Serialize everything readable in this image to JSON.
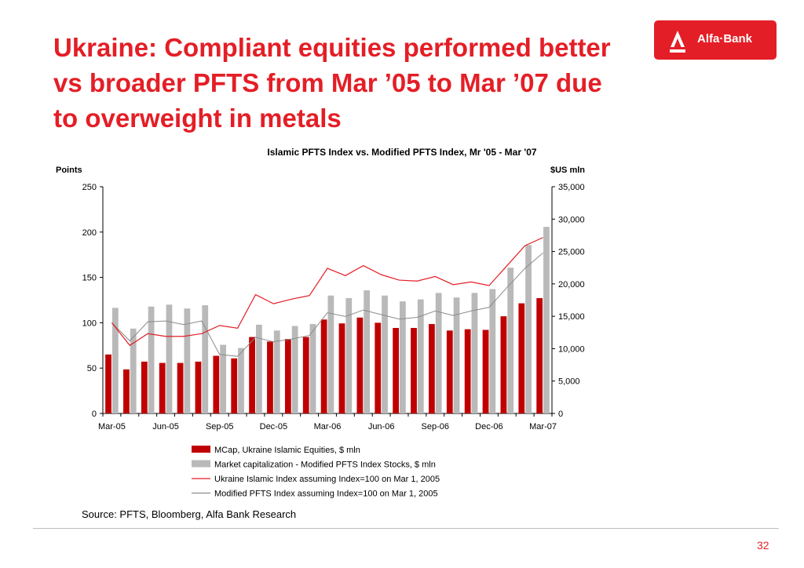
{
  "slide": {
    "title": "Ukraine: Compliant equities performed better vs broader PFTS from Mar ’05 to Mar ’07 due to overweight in metals",
    "logo_text": "Alfa·Bank",
    "source": "Source: PFTS, Bloomberg, Alfa Bank Research",
    "page_number": "32",
    "colors": {
      "accent": "#e41e26",
      "bar_gray": "#b9b9b9",
      "bar_red": "#c00000",
      "line_gray": "#8c8c8c"
    }
  },
  "chart_data": {
    "type": "bar",
    "title": "Islamic PFTS Index vs. Modified PFTS Index, Mr '05 - Mar '07",
    "ylabel": "Points",
    "y2label": "$US mln",
    "ylim": [
      0,
      250
    ],
    "y2lim": [
      0,
      35000
    ],
    "yticks": [
      "0",
      "50",
      "100",
      "150",
      "200",
      "250"
    ],
    "y2ticks": [
      "0",
      "5,000",
      "10,000",
      "15,000",
      "20,000",
      "25,000",
      "30,000",
      "35,000"
    ],
    "x": [
      "Mar-05",
      "Apr-05",
      "May-05",
      "Jun-05",
      "Jul-05",
      "Aug-05",
      "Sep-05",
      "Oct-05",
      "Nov-05",
      "Dec-05",
      "Jan-06",
      "Feb-06",
      "Mar-06",
      "Apr-06",
      "May-06",
      "Jun-06",
      "Jul-06",
      "Aug-06",
      "Sep-06",
      "Oct-06",
      "Nov-06",
      "Dec-06",
      "Jan-07",
      "Feb-07",
      "Mar-07"
    ],
    "xtick_labels": [
      "Mar-05",
      "Jun-05",
      "Sep-05",
      "Dec-05",
      "Mar-06",
      "Jun-06",
      "Sep-06",
      "Dec-06",
      "Mar-07"
    ],
    "legend_position": "bottom",
    "series": [
      {
        "name": "MCap, Ukraine Islamic Equities, $ mln",
        "kind": "bar",
        "axis": "right",
        "values": [
          9100,
          6800,
          8000,
          7800,
          7800,
          8000,
          8900,
          8500,
          11800,
          11100,
          11500,
          11800,
          14500,
          13900,
          14800,
          14000,
          13200,
          13200,
          13800,
          12800,
          13000,
          12900,
          15000,
          17000,
          17800
        ]
      },
      {
        "name": "Market capitalization - Modified PFTS Index Stocks, $ mln",
        "kind": "bar",
        "axis": "right",
        "values": [
          16300,
          13100,
          16500,
          16800,
          16200,
          16700,
          10600,
          10100,
          13700,
          12800,
          13500,
          13800,
          18200,
          17800,
          19000,
          18200,
          17300,
          17600,
          18600,
          17900,
          18600,
          19200,
          22500,
          26000,
          28800
        ]
      },
      {
        "name": "Ukraine Islamic Index assuming Index=100 on Mar 1, 2005",
        "kind": "line",
        "axis": "left",
        "values": [
          100,
          75,
          88,
          85,
          85,
          88,
          97,
          94,
          131,
          121,
          126,
          130,
          160,
          152,
          163,
          153,
          147,
          146,
          151,
          142,
          145,
          141,
          163,
          185,
          194
        ]
      },
      {
        "name": "Modified PFTS Index assuming Index=100 on Mar 1, 2005",
        "kind": "line",
        "axis": "left",
        "values": [
          100,
          80,
          101,
          102,
          98,
          102,
          65,
          63,
          84,
          79,
          82,
          86,
          111,
          107,
          114,
          109,
          104,
          106,
          113,
          108,
          113,
          117,
          139,
          160,
          177
        ]
      }
    ]
  }
}
